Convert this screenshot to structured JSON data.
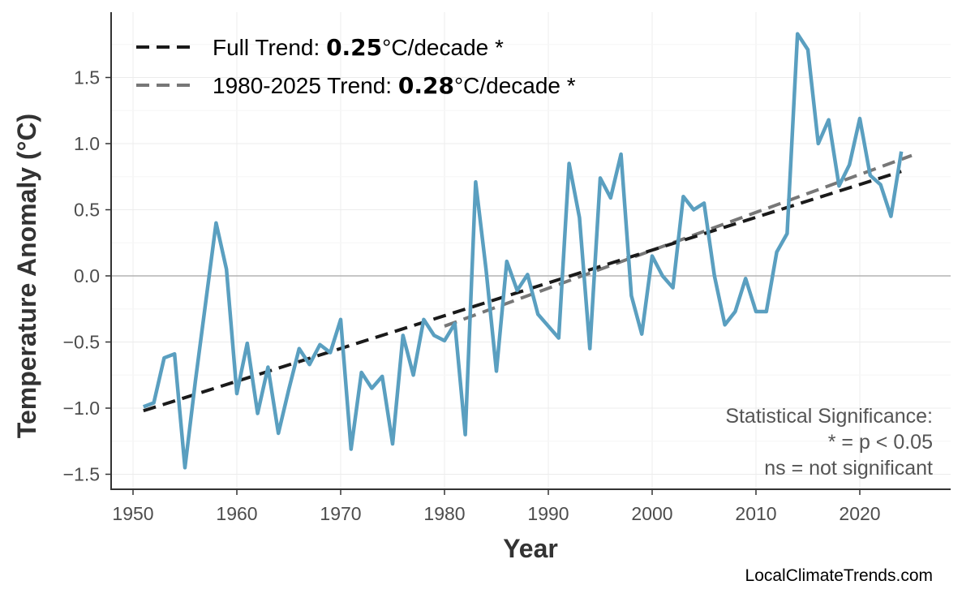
{
  "chart_data": {
    "type": "line",
    "xlabel": "Year",
    "ylabel": "Temperature Anomaly (°C)",
    "xlim": [
      1947,
      2028.5
    ],
    "ylim": [
      -1.62,
      1.98
    ],
    "xticks": [
      1950,
      1960,
      1970,
      1980,
      1990,
      2000,
      2010,
      2020
    ],
    "xtick_labels": [
      "1950",
      "1960",
      "1970",
      "1980",
      "1990",
      "2000",
      "2010",
      "2020"
    ],
    "yticks": [
      -1.5,
      -1.0,
      -0.5,
      0.0,
      0.5,
      1.0,
      1.5
    ],
    "ytick_labels": [
      "−1.5",
      "−1.0",
      "−0.5",
      "0.0",
      "0.5",
      "1.0",
      "1.5"
    ],
    "grid": true,
    "legend_position": "top-left",
    "series": [
      {
        "name": "Temperature Anomaly",
        "color": "#5a9fc0",
        "x": [
          1951,
          1952,
          1953,
          1954,
          1955,
          1956,
          1957,
          1958,
          1959,
          1960,
          1961,
          1962,
          1963,
          1964,
          1965,
          1966,
          1967,
          1968,
          1969,
          1970,
          1971,
          1972,
          1973,
          1974,
          1975,
          1976,
          1977,
          1978,
          1979,
          1980,
          1981,
          1982,
          1983,
          1984,
          1985,
          1986,
          1987,
          1988,
          1989,
          1990,
          1991,
          1992,
          1993,
          1994,
          1995,
          1996,
          1997,
          1998,
          1999,
          2000,
          2001,
          2002,
          2003,
          2004,
          2005,
          2006,
          2007,
          2008,
          2009,
          2010,
          2011,
          2012,
          2013,
          2014,
          2015,
          2016,
          2017,
          2018,
          2019,
          2020,
          2021,
          2022,
          2023,
          2024
        ],
        "values": [
          -0.99,
          -0.96,
          -0.62,
          -0.59,
          -1.45,
          -0.8,
          -0.2,
          0.4,
          0.05,
          -0.89,
          -0.51,
          -1.04,
          -0.69,
          -1.19,
          -0.86,
          -0.55,
          -0.67,
          -0.52,
          -0.58,
          -0.33,
          -1.31,
          -0.73,
          -0.85,
          -0.76,
          -1.27,
          -0.45,
          -0.75,
          -0.33,
          -0.45,
          -0.49,
          -0.36,
          -1.2,
          0.71,
          0.05,
          -0.72,
          0.11,
          -0.11,
          0.01,
          -0.29,
          -0.38,
          -0.47,
          0.85,
          0.44,
          -0.55,
          0.74,
          0.59,
          0.92,
          -0.15,
          -0.44,
          0.15,
          0.0,
          -0.09,
          0.6,
          0.5,
          0.55,
          0.0,
          -0.37,
          -0.27,
          -0.02,
          -0.27,
          -0.27,
          0.18,
          0.32,
          1.83,
          1.71,
          1.0,
          1.18,
          0.68,
          0.84,
          1.19,
          0.76,
          0.69,
          0.45,
          0.94
        ]
      }
    ],
    "trends": [
      {
        "name": "Full Trend",
        "label_prefix": "Full Trend: ",
        "rate": "0.25",
        "label_suffix": "°C/decade *",
        "color": "#1a1a1a",
        "x": [
          1951,
          2024
        ],
        "y": [
          -1.02,
          0.79
        ]
      },
      {
        "name": "1980-2025 Trend",
        "label_prefix": "1980-2025 Trend: ",
        "rate": "0.28",
        "label_suffix": "°C/decade *",
        "color": "#777777",
        "x": [
          1980,
          2025
        ],
        "y": [
          -0.38,
          0.91
        ]
      }
    ],
    "annotations": {
      "significance_lines": [
        "Statistical Significance:",
        "* = p < 0.05",
        "ns = not significant"
      ],
      "source": "LocalClimateTrends.com"
    }
  }
}
